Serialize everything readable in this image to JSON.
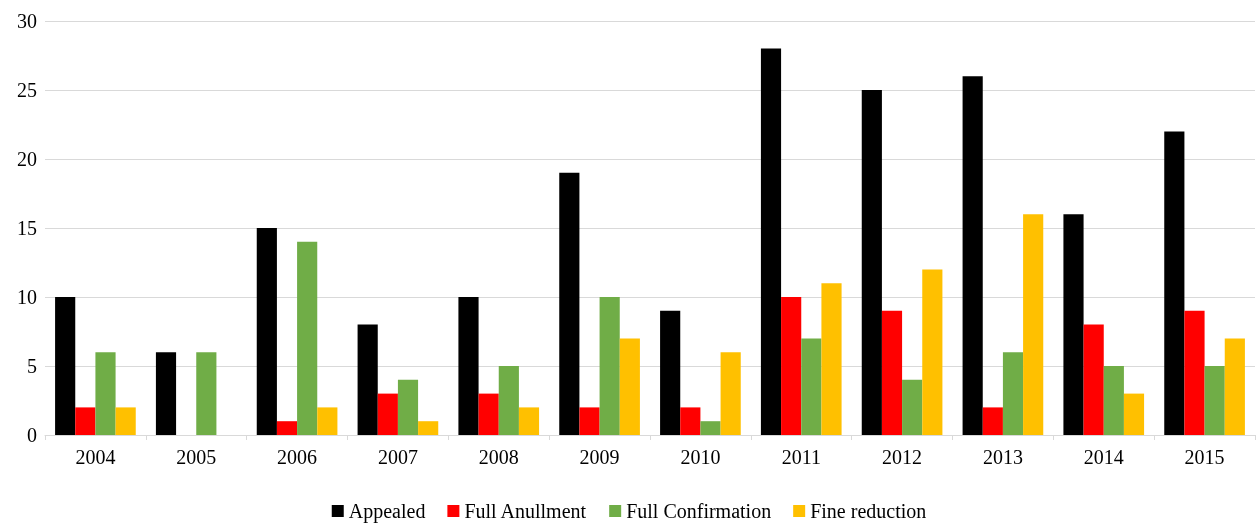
{
  "chart_data": {
    "type": "bar",
    "categories": [
      "2004",
      "2005",
      "2006",
      "2007",
      "2008",
      "2009",
      "2010",
      "2011",
      "2012",
      "2013",
      "2014",
      "2015"
    ],
    "series": [
      {
        "name": "Appealed",
        "color": "#000000",
        "values": [
          10,
          6,
          15,
          8,
          10,
          19,
          9,
          28,
          25,
          26,
          16,
          22
        ]
      },
      {
        "name": "Full Anullment",
        "color": "#ff0000",
        "values": [
          2,
          0,
          1,
          3,
          3,
          2,
          2,
          10,
          9,
          2,
          8,
          9
        ]
      },
      {
        "name": "Full Confirmation",
        "color": "#70ad47",
        "values": [
          6,
          6,
          14,
          4,
          5,
          10,
          1,
          7,
          4,
          6,
          5,
          5
        ]
      },
      {
        "name": "Fine reduction",
        "color": "#ffc000",
        "values": [
          2,
          0,
          2,
          1,
          2,
          7,
          6,
          11,
          12,
          16,
          3,
          7
        ]
      }
    ],
    "ylim": [
      0,
      30
    ],
    "yticks": [
      0,
      5,
      10,
      15,
      20,
      25,
      30
    ],
    "grid": "y",
    "legend": "bottom"
  }
}
